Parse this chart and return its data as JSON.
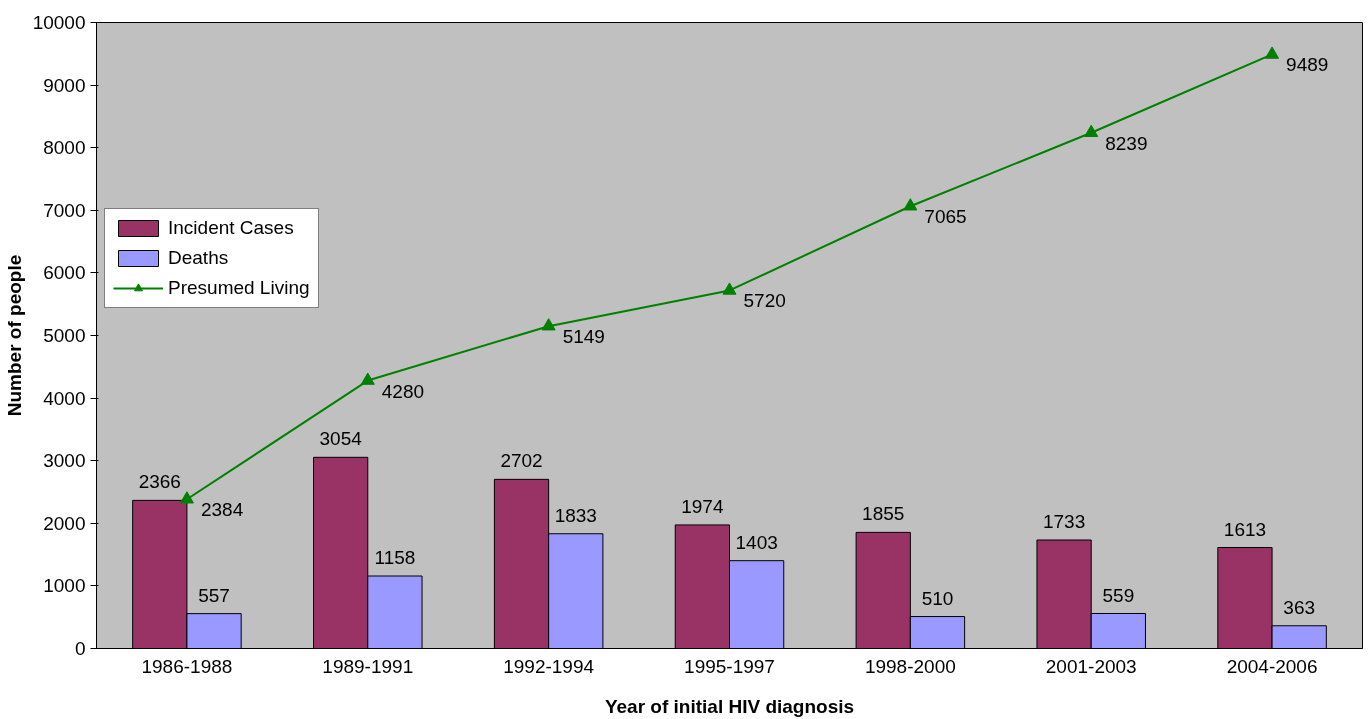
{
  "chart_data": {
    "type": "bar",
    "xlabel": "Year of initial HIV diagnosis",
    "ylabel": "Number of people",
    "categories": [
      "1986-1988",
      "1989-1991",
      "1992-1994",
      "1995-1997",
      "1998-2000",
      "2001-2003",
      "2004-2006"
    ],
    "series": [
      {
        "name": "Incident Cases",
        "color": "#993366",
        "values": [
          2366,
          3054,
          2702,
          1974,
          1855,
          1733,
          1613
        ]
      },
      {
        "name": "Deaths",
        "color": "#9999ff",
        "values": [
          557,
          1158,
          1833,
          1403,
          510,
          559,
          363
        ]
      },
      {
        "name": "Presumed Living",
        "type": "line",
        "color": "#008000",
        "marker": "triangle",
        "values": [
          2384,
          4280,
          5149,
          5720,
          7065,
          8239,
          9489
        ]
      }
    ],
    "ylim": [
      0,
      10000
    ],
    "yticks": [
      0,
      1000,
      2000,
      3000,
      4000,
      5000,
      6000,
      7000,
      8000,
      9000,
      10000
    ],
    "grid": false,
    "legend": "top left",
    "data_labels": true
  }
}
